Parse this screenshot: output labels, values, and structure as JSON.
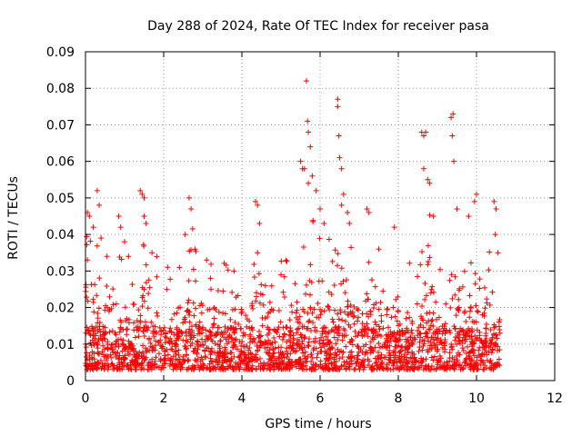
{
  "chart_data": {
    "type": "scatter",
    "title": "Day 288 of 2024, Rate Of TEC Index for receiver pasa",
    "xlabel": "GPS time / hours",
    "ylabel": "ROTI / TECUs",
    "xlim": [
      0,
      12
    ],
    "ylim": [
      0,
      0.09
    ],
    "xticks": [
      0,
      2,
      4,
      6,
      8,
      10,
      12
    ],
    "xtick_labels": [
      "0",
      "2",
      "4",
      "6",
      "8",
      "10",
      "12"
    ],
    "yticks": [
      0,
      0.01,
      0.02,
      0.03,
      0.04,
      0.05,
      0.06,
      0.07,
      0.08,
      0.09
    ],
    "ytick_labels": [
      "0",
      "0.01",
      "0.02",
      "0.03",
      "0.04",
      "0.05",
      "0.06",
      "0.07",
      "0.08",
      "0.09"
    ],
    "grid": true,
    "marker": "+",
    "color": "#ff0000",
    "series": [
      {
        "name": "ROTI",
        "x_range": [
          0,
          10.6
        ],
        "typical_range": [
          0.003,
          0.02
        ],
        "points": [
          [
            0.05,
            0.046
          ],
          [
            0.1,
            0.045
          ],
          [
            0.05,
            0.033
          ],
          [
            0.2,
            0.042
          ],
          [
            0.3,
            0.052
          ],
          [
            0.35,
            0.048
          ],
          [
            0.4,
            0.039
          ],
          [
            0.55,
            0.034
          ],
          [
            0.85,
            0.045
          ],
          [
            0.9,
            0.042
          ],
          [
            1.0,
            0.038
          ],
          [
            1.1,
            0.034
          ],
          [
            1.4,
            0.052
          ],
          [
            1.45,
            0.051
          ],
          [
            1.5,
            0.05
          ],
          [
            1.5,
            0.045
          ],
          [
            1.55,
            0.043
          ],
          [
            1.7,
            0.035
          ],
          [
            2.1,
            0.031
          ],
          [
            2.55,
            0.04
          ],
          [
            2.65,
            0.05
          ],
          [
            2.7,
            0.047
          ],
          [
            2.8,
            0.036
          ],
          [
            3.1,
            0.033
          ],
          [
            3.2,
            0.028
          ],
          [
            3.8,
            0.03
          ],
          [
            4.35,
            0.049
          ],
          [
            4.4,
            0.048
          ],
          [
            4.45,
            0.043
          ],
          [
            4.4,
            0.035
          ],
          [
            4.6,
            0.026
          ],
          [
            5.0,
            0.029
          ],
          [
            5.5,
            0.06
          ],
          [
            5.55,
            0.058
          ],
          [
            5.6,
            0.058
          ],
          [
            5.65,
            0.082
          ],
          [
            5.68,
            0.071
          ],
          [
            5.7,
            0.068
          ],
          [
            5.75,
            0.064
          ],
          [
            5.7,
            0.054
          ],
          [
            5.8,
            0.056
          ],
          [
            5.9,
            0.052
          ],
          [
            6.0,
            0.047
          ],
          [
            6.1,
            0.043
          ],
          [
            6.45,
            0.077
          ],
          [
            6.45,
            0.075
          ],
          [
            6.48,
            0.067
          ],
          [
            6.5,
            0.061
          ],
          [
            6.55,
            0.058
          ],
          [
            6.6,
            0.051
          ],
          [
            6.55,
            0.048
          ],
          [
            6.7,
            0.046
          ],
          [
            6.75,
            0.043
          ],
          [
            7.2,
            0.047
          ],
          [
            7.25,
            0.046
          ],
          [
            7.5,
            0.036
          ],
          [
            7.9,
            0.042
          ],
          [
            8.6,
            0.068
          ],
          [
            8.65,
            0.067
          ],
          [
            8.7,
            0.068
          ],
          [
            8.65,
            0.058
          ],
          [
            8.75,
            0.055
          ],
          [
            8.8,
            0.054
          ],
          [
            8.9,
            0.045
          ],
          [
            9.35,
            0.072
          ],
          [
            9.4,
            0.073
          ],
          [
            9.38,
            0.067
          ],
          [
            9.42,
            0.06
          ],
          [
            9.5,
            0.047
          ],
          [
            9.8,
            0.045
          ],
          [
            9.95,
            0.049
          ],
          [
            10.0,
            0.051
          ],
          [
            10.45,
            0.049
          ],
          [
            10.5,
            0.047
          ],
          [
            10.48,
            0.04
          ],
          [
            10.55,
            0.035
          ]
        ]
      }
    ]
  }
}
